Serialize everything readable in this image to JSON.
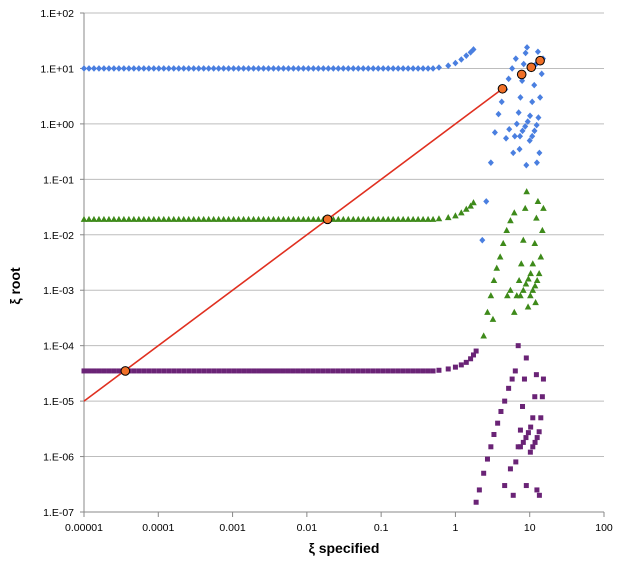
{
  "chart_data": {
    "type": "scatter",
    "title": "",
    "xlabel": "ξ specified",
    "ylabel": "ξ root",
    "xscale": "log",
    "yscale": "log",
    "xlim": [
      1e-05,
      100
    ],
    "ylim": [
      1e-07,
      100
    ],
    "grid": "horizontal major gridlines",
    "legend": "none",
    "x_tick_labels": [
      "0.00001",
      "0.0001",
      "0.001",
      "0.01",
      "0.1",
      "1",
      "10",
      "100"
    ],
    "x_tick_values": [
      1e-05,
      0.0001,
      0.001,
      0.01,
      0.1,
      1,
      10,
      100
    ],
    "y_tick_labels": [
      "1.E-07",
      "1.E-06",
      "1.E-05",
      "1.E-04",
      "1.E-03",
      "1.E-02",
      "1.E-01",
      "1.E+00",
      "1.E+01",
      "1.E+02"
    ],
    "y_tick_values": [
      1e-07,
      1e-06,
      1e-05,
      0.0001,
      0.001,
      0.01,
      0.1,
      1,
      10,
      100
    ],
    "colors": {
      "blue": "#4a7fe0",
      "green": "#3e8a1a",
      "purple": "#6a2376",
      "line": "#e03020",
      "circle_fill": "#f07028",
      "grid": "#bdbdbd",
      "axis": "#888888"
    },
    "series": [
      {
        "marker": "diamond",
        "color": "#4a7fe0",
        "plateau_value": 10,
        "plateau_x_range": [
          1e-05,
          0.5
        ],
        "rise_points": [
          [
            0.6,
            10.4
          ],
          [
            0.8,
            11.2
          ],
          [
            1.0,
            12.5
          ],
          [
            1.2,
            14.5
          ],
          [
            1.4,
            17
          ],
          [
            1.6,
            19.5
          ],
          [
            1.75,
            22
          ]
        ],
        "branches": [
          [
            [
              2.3,
              0.008
            ],
            [
              2.6,
              0.04
            ],
            [
              3.0,
              0.2
            ],
            [
              3.4,
              0.7
            ],
            [
              3.8,
              1.5
            ],
            [
              4.2,
              2.5
            ],
            [
              4.7,
              4.2
            ],
            [
              5.2,
              6.5
            ],
            [
              5.8,
              10
            ],
            [
              6.5,
              15
            ]
          ],
          [
            [
              6.0,
              0.3
            ],
            [
              6.3,
              0.6
            ],
            [
              6.7,
              1.0
            ],
            [
              7.1,
              1.6
            ],
            [
              7.5,
              3.0
            ],
            [
              7.9,
              6
            ],
            [
              8.3,
              12
            ],
            [
              8.8,
              19
            ],
            [
              9.2,
              24
            ]
          ],
          [
            [
              7.4,
              0.6
            ],
            [
              8.0,
              0.75
            ],
            [
              8.7,
              0.9
            ],
            [
              9.4,
              1.1
            ],
            [
              10.1,
              1.4
            ],
            [
              10.8,
              2.5
            ],
            [
              11.5,
              5
            ],
            [
              12.2,
              12
            ],
            [
              12.9,
              20
            ]
          ],
          [
            [
              10.0,
              0.5
            ],
            [
              10.8,
              0.6
            ],
            [
              11.6,
              0.75
            ],
            [
              12.4,
              0.95
            ],
            [
              13.1,
              1.3
            ],
            [
              13.8,
              3
            ],
            [
              14.5,
              8
            ],
            [
              15.1,
              15
            ]
          ],
          [
            [
              4.8,
              0.55
            ],
            [
              5.3,
              0.8
            ]
          ],
          [
            [
              9.0,
              0.18
            ],
            [
              12.5,
              0.2
            ],
            [
              13.5,
              0.3
            ],
            [
              7.3,
              0.35
            ]
          ]
        ]
      },
      {
        "marker": "triangle",
        "color": "#3e8a1a",
        "plateau_value": 0.019,
        "plateau_x_range": [
          1e-05,
          0.5
        ],
        "rise_points": [
          [
            0.6,
            0.0195
          ],
          [
            0.8,
            0.0205
          ],
          [
            1.0,
            0.022
          ],
          [
            1.2,
            0.025
          ],
          [
            1.4,
            0.029
          ],
          [
            1.6,
            0.033
          ],
          [
            1.75,
            0.038
          ]
        ],
        "branches": [
          [
            [
              2.4,
              0.00015
            ],
            [
              2.7,
              0.0004
            ],
            [
              3.0,
              0.0008
            ],
            [
              3.3,
              0.0015
            ],
            [
              3.6,
              0.0025
            ],
            [
              4.0,
              0.004
            ],
            [
              4.4,
              0.007
            ],
            [
              4.9,
              0.012
            ],
            [
              5.5,
              0.018
            ],
            [
              6.2,
              0.025
            ]
          ],
          [
            [
              6.2,
              0.0004
            ],
            [
              6.7,
              0.0008
            ],
            [
              7.2,
              0.0015
            ],
            [
              7.7,
              0.003
            ],
            [
              8.2,
              0.008
            ],
            [
              8.7,
              0.03
            ],
            [
              9.1,
              0.06
            ]
          ],
          [
            [
              7.5,
              0.0008
            ],
            [
              8.2,
              0.001
            ],
            [
              8.9,
              0.0013
            ],
            [
              9.6,
              0.0016
            ],
            [
              10.3,
              0.002
            ],
            [
              11.0,
              0.003
            ],
            [
              11.7,
              0.007
            ],
            [
              12.3,
              0.02
            ],
            [
              12.9,
              0.04
            ]
          ],
          [
            [
              10.2,
              0.0008
            ],
            [
              11.0,
              0.001
            ],
            [
              11.8,
              0.0012
            ],
            [
              12.6,
              0.0015
            ],
            [
              13.4,
              0.002
            ],
            [
              14.1,
              0.004
            ],
            [
              14.8,
              0.012
            ],
            [
              15.3,
              0.03
            ]
          ],
          [
            [
              3.2,
              0.0003
            ],
            [
              5.0,
              0.0008
            ],
            [
              5.5,
              0.001
            ],
            [
              9.5,
              0.0005
            ],
            [
              12.0,
              0.0006
            ]
          ]
        ]
      },
      {
        "marker": "square",
        "color": "#6a2376",
        "plateau_value": 3.5e-05,
        "plateau_x_range": [
          1e-05,
          0.5
        ],
        "rise_points": [
          [
            0.6,
            3.6e-05
          ],
          [
            0.8,
            3.8e-05
          ],
          [
            1.0,
            4.1e-05
          ],
          [
            1.2,
            4.5e-05
          ],
          [
            1.4,
            5e-05
          ],
          [
            1.6,
            5.8e-05
          ],
          [
            1.75,
            6.8e-05
          ],
          [
            1.9,
            8e-05
          ]
        ],
        "branches": [
          [
            [
              1.9,
              1.5e-07
            ],
            [
              2.1,
              2.5e-07
            ],
            [
              2.4,
              5e-07
            ],
            [
              2.7,
              9e-07
            ],
            [
              3.0,
              1.5e-06
            ],
            [
              3.3,
              2.5e-06
            ],
            [
              3.7,
              4e-06
            ],
            [
              4.1,
              6.5e-06
            ],
            [
              4.6,
              1e-05
            ],
            [
              5.2,
              1.7e-05
            ],
            [
              5.8,
              2.5e-05
            ],
            [
              6.4,
              3.5e-05
            ]
          ],
          [
            [
              6.0,
              2e-07
            ],
            [
              6.5,
              8e-07
            ],
            [
              7.0,
              1.5e-06
            ],
            [
              7.5,
              3e-06
            ],
            [
              8.0,
              8e-06
            ],
            [
              8.5,
              2.5e-05
            ],
            [
              9.0,
              6e-05
            ]
          ],
          [
            [
              7.5,
              1.5e-06
            ],
            [
              8.2,
              1.8e-06
            ],
            [
              8.9,
              2.2e-06
            ],
            [
              9.6,
              2.7e-06
            ],
            [
              10.3,
              3.4e-06
            ],
            [
              11.0,
              5e-06
            ],
            [
              11.7,
              1.2e-05
            ],
            [
              12.3,
              3e-05
            ]
          ],
          [
            [
              10.2,
              1.2e-06
            ],
            [
              11.0,
              1.5e-06
            ],
            [
              11.8,
              1.8e-06
            ],
            [
              12.6,
              2.2e-06
            ],
            [
              13.4,
              2.8e-06
            ],
            [
              14.1,
              5e-06
            ],
            [
              14.8,
              1.2e-05
            ],
            [
              15.3,
              2.5e-05
            ]
          ],
          [
            [
              4.6,
              3e-07
            ],
            [
              5.5,
              6e-07
            ],
            [
              9.0,
              3e-07
            ],
            [
              12.5,
              2.5e-07
            ],
            [
              13.5,
              2e-07
            ],
            [
              7.0,
              0.0001
            ]
          ]
        ]
      }
    ],
    "reference_line": {
      "label": "",
      "description_points": [
        [
          1e-05,
          1e-05
        ],
        [
          4.3,
          4.3
        ]
      ],
      "color": "#e03020"
    },
    "intersection_points": [
      [
        3.6e-05,
        3.5e-05
      ],
      [
        0.019,
        0.019
      ],
      [
        4.3,
        4.3
      ],
      [
        7.8,
        7.8
      ],
      [
        10.5,
        10.5
      ],
      [
        13.8,
        13.8
      ]
    ]
  }
}
